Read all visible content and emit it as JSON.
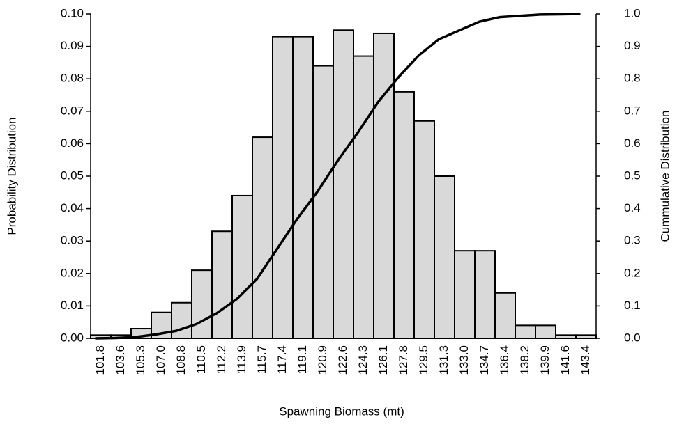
{
  "chart_data": {
    "type": "bar",
    "x_label": "Spawning Biomass  (mt)",
    "y_label": "Probability Distribution",
    "y2_label": "Cummulative Distribution",
    "categories": [
      "101.8",
      "103.6",
      "105.3",
      "107.0",
      "108.8",
      "110.5",
      "112.2",
      "113.9",
      "115.7",
      "117.4",
      "119.1",
      "120.9",
      "122.6",
      "124.3",
      "126.1",
      "127.8",
      "129.5",
      "131.3",
      "133.0",
      "134.7",
      "136.4",
      "138.2",
      "139.9",
      "141.6",
      "143.4"
    ],
    "series": [
      {
        "type": "bar",
        "color": "#d9d9d9",
        "values": [
          0.001,
          0.001,
          0.003,
          0.008,
          0.011,
          0.021,
          0.033,
          0.044,
          0.062,
          0.093,
          0.093,
          0.084,
          0.095,
          0.087,
          0.094,
          0.076,
          0.067,
          0.05,
          0.027,
          0.027,
          0.014,
          0.004,
          0.004,
          0.001,
          0.001
        ]
      },
      {
        "type": "line",
        "axis": "y2",
        "color": "#000000",
        "values": [
          0.0,
          0.001,
          0.004,
          0.012,
          0.023,
          0.044,
          0.077,
          0.121,
          0.183,
          0.276,
          0.369,
          0.453,
          0.548,
          0.635,
          0.729,
          0.805,
          0.872,
          0.922,
          0.949,
          0.976,
          0.99,
          0.994,
          0.998,
          0.999,
          1.0
        ]
      }
    ],
    "ylim": [
      0,
      0.1
    ],
    "yticks": [
      {
        "value": 0,
        "label": "0.00"
      },
      {
        "value": 0.01,
        "label": "0.01"
      },
      {
        "value": 0.02,
        "label": "0.02"
      },
      {
        "value": 0.03,
        "label": "0.03"
      },
      {
        "value": 0.04,
        "label": "0.04"
      },
      {
        "value": 0.05,
        "label": "0.05"
      },
      {
        "value": 0.06,
        "label": "0.06"
      },
      {
        "value": 0.07,
        "label": "0.07"
      },
      {
        "value": 0.08,
        "label": "0.08"
      },
      {
        "value": 0.09,
        "label": "0.09"
      },
      {
        "value": 0.1,
        "label": "0.10"
      }
    ],
    "y2lim": [
      0,
      1
    ],
    "y2ticks": [
      {
        "value": 0,
        "label": "0.0"
      },
      {
        "value": 0.1,
        "label": "0.1"
      },
      {
        "value": 0.2,
        "label": "0.2"
      },
      {
        "value": 0.3,
        "label": "0.3"
      },
      {
        "value": 0.4,
        "label": "0.4"
      },
      {
        "value": 0.5,
        "label": "0.5"
      },
      {
        "value": 0.6,
        "label": "0.6"
      },
      {
        "value": 0.7,
        "label": "0.7"
      },
      {
        "value": 0.8,
        "label": "0.8"
      },
      {
        "value": 0.9,
        "label": "0.9"
      },
      {
        "value": 1,
        "label": "1.0"
      }
    ],
    "grid": false
  }
}
